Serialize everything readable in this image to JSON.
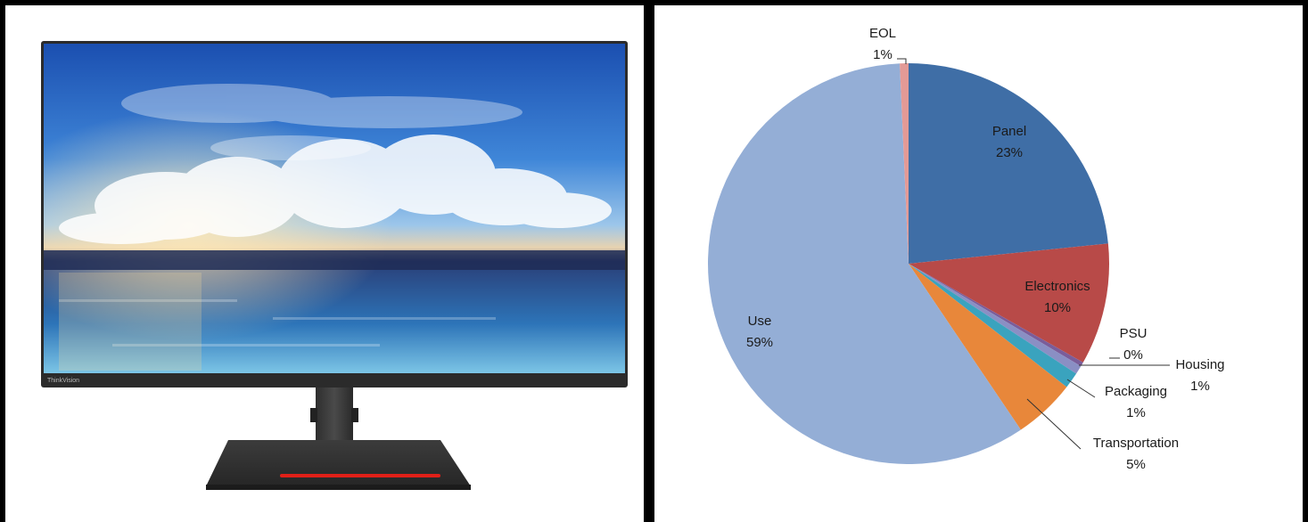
{
  "monitor": {
    "brand": "ThinkVision"
  },
  "chart_data": {
    "type": "pie",
    "start_angle_deg": 0,
    "direction": "clockwise",
    "slices": [
      {
        "label": "Panel",
        "pct_label": "23%",
        "value": 23.4,
        "color": "#3f6ea6"
      },
      {
        "label": "Electronics",
        "pct_label": "10%",
        "value": 9.8,
        "color": "#b84a48"
      },
      {
        "label": "PSU",
        "pct_label": "0%",
        "value": 0.35,
        "color": "#7a5d9a"
      },
      {
        "label": "Housing",
        "pct_label": "1%",
        "value": 0.7,
        "color": "#8a8fc4"
      },
      {
        "label": "Packaging",
        "pct_label": "1%",
        "value": 1.3,
        "color": "#3aa3be"
      },
      {
        "label": "Transportation",
        "pct_label": "5%",
        "value": 5.0,
        "color": "#e8873a"
      },
      {
        "label": "Use",
        "pct_label": "59%",
        "value": 58.75,
        "color": "#94aed6"
      },
      {
        "label": "EOL",
        "pct_label": "1%",
        "value": 0.7,
        "color": "#e39a96"
      }
    ]
  }
}
